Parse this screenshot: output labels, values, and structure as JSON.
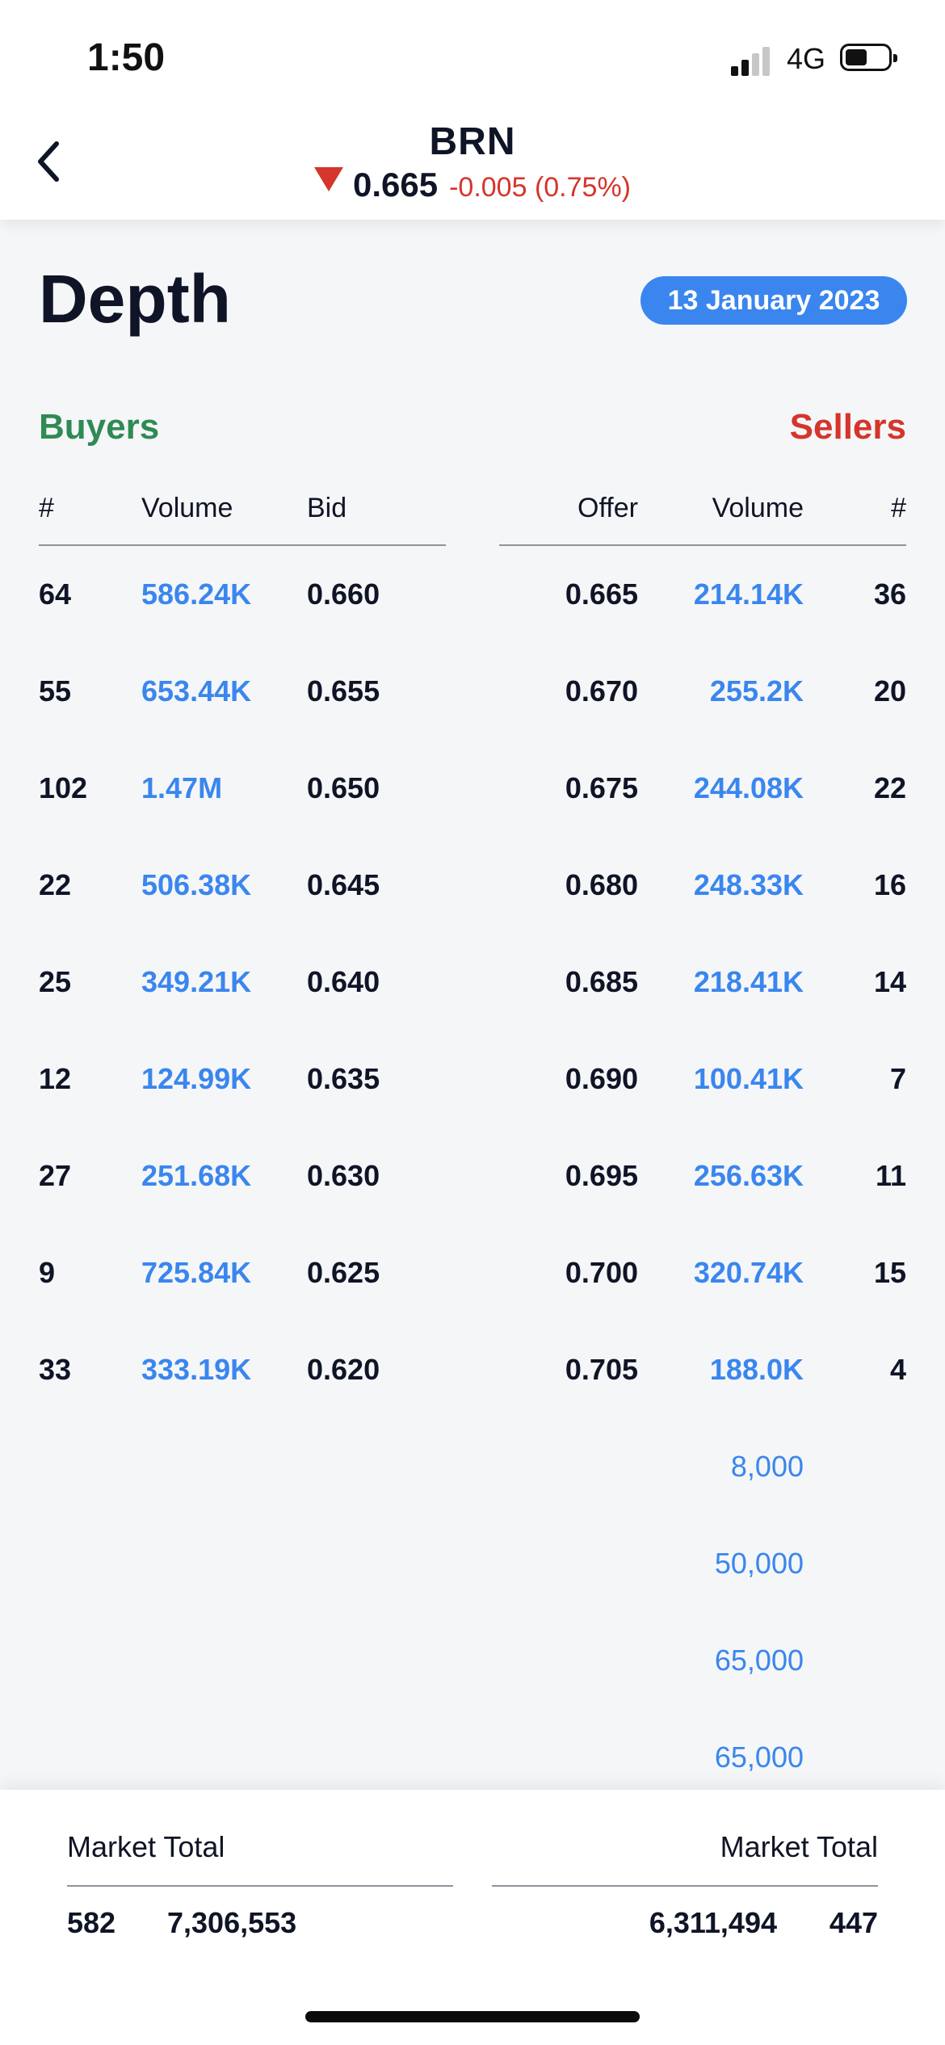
{
  "status_bar": {
    "time": "1:50",
    "network": "4G"
  },
  "header": {
    "ticker": "BRN",
    "price": "0.665",
    "change": "-0.005 (0.75%)",
    "direction": "down",
    "down_color": "#d5352b"
  },
  "page": {
    "title": "Depth",
    "date": "13 January 2023"
  },
  "buyers": {
    "title": "Buyers",
    "color": "#2f8a54",
    "columns": {
      "count": "#",
      "volume": "Volume",
      "price": "Bid"
    }
  },
  "sellers": {
    "title": "Sellers",
    "color": "#d5352b",
    "columns": {
      "price": "Offer",
      "volume": "Volume",
      "count": "#"
    }
  },
  "rows": [
    {
      "b_count": "64",
      "b_vol": "586.24K",
      "bid": "0.660",
      "offer": "0.665",
      "s_vol": "214.14K",
      "s_count": "36"
    },
    {
      "b_count": "55",
      "b_vol": "653.44K",
      "bid": "0.655",
      "offer": "0.670",
      "s_vol": "255.2K",
      "s_count": "20"
    },
    {
      "b_count": "102",
      "b_vol": "1.47M",
      "bid": "0.650",
      "offer": "0.675",
      "s_vol": "244.08K",
      "s_count": "22"
    },
    {
      "b_count": "22",
      "b_vol": "506.38K",
      "bid": "0.645",
      "offer": "0.680",
      "s_vol": "248.33K",
      "s_count": "16"
    },
    {
      "b_count": "25",
      "b_vol": "349.21K",
      "bid": "0.640",
      "offer": "0.685",
      "s_vol": "218.41K",
      "s_count": "14"
    },
    {
      "b_count": "12",
      "b_vol": "124.99K",
      "bid": "0.635",
      "offer": "0.690",
      "s_vol": "100.41K",
      "s_count": "7"
    },
    {
      "b_count": "27",
      "b_vol": "251.68K",
      "bid": "0.630",
      "offer": "0.695",
      "s_vol": "256.63K",
      "s_count": "11"
    },
    {
      "b_count": "9",
      "b_vol": "725.84K",
      "bid": "0.625",
      "offer": "0.700",
      "s_vol": "320.74K",
      "s_count": "15"
    },
    {
      "b_count": "33",
      "b_vol": "333.19K",
      "bid": "0.620",
      "offer": "0.705",
      "s_vol": "188.0K",
      "s_count": "4"
    }
  ],
  "extra_seller_volumes": [
    "8,000",
    "50,000",
    "65,000",
    "65,000"
  ],
  "footer": {
    "buyers_label": "Market Total",
    "sellers_label": "Market Total",
    "buyers_count": "582",
    "buyers_volume": "7,306,553",
    "sellers_volume": "6,311,494",
    "sellers_count": "447"
  },
  "accent_color": "#3a86ee"
}
